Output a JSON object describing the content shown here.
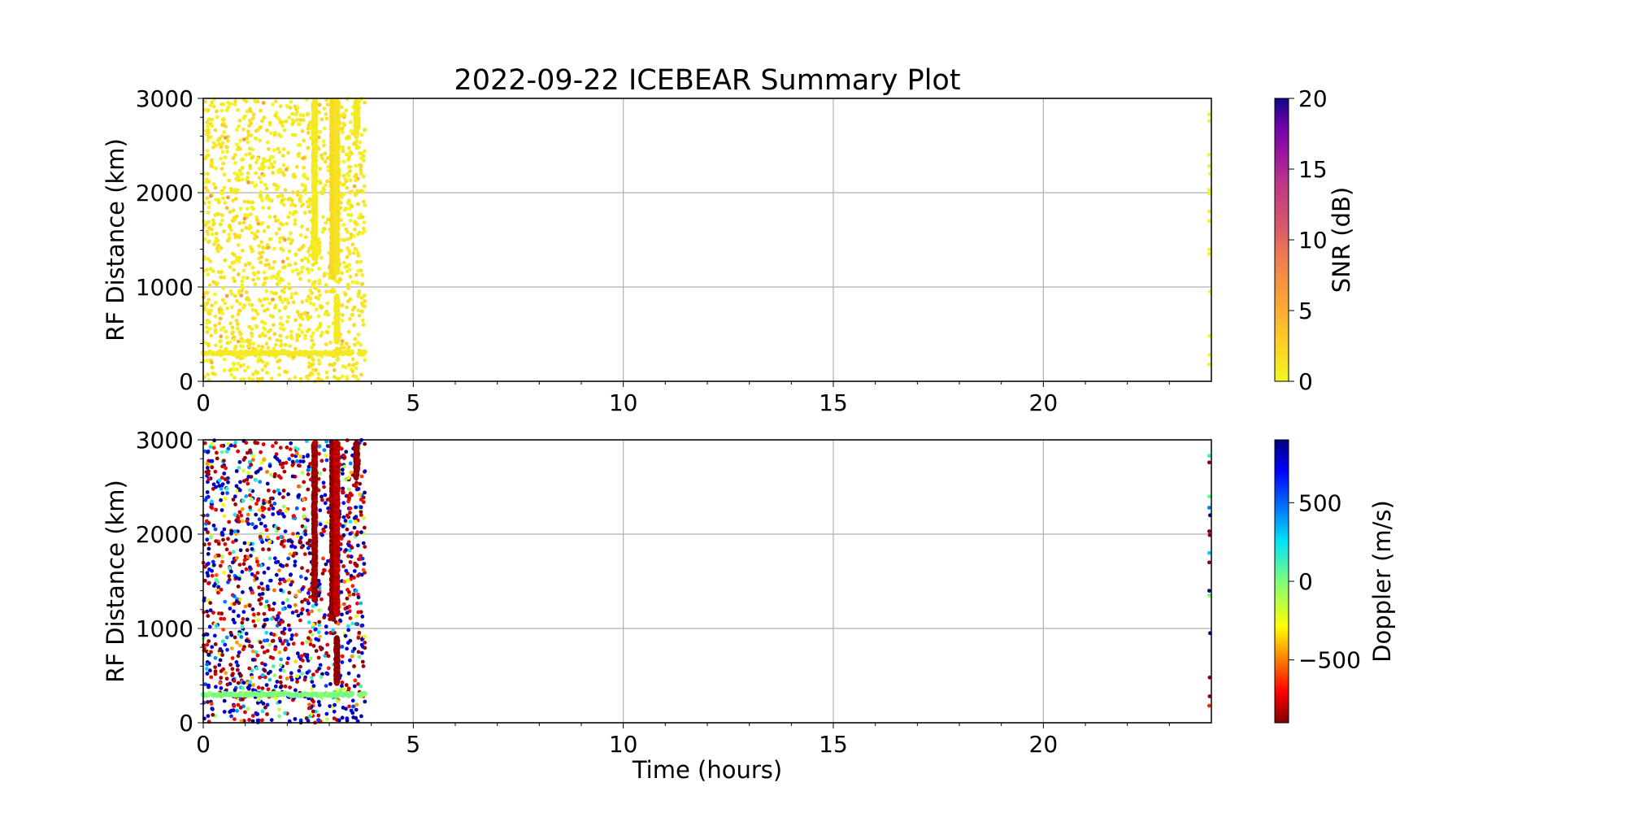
{
  "chart_data": [
    {
      "type": "scatter",
      "title": "2022-09-22 ICEBEAR Summary Plot",
      "xlabel": "",
      "ylabel": "RF Distance (km)",
      "xlim": [
        0,
        24
      ],
      "ylim": [
        0,
        3000
      ],
      "xticks": [
        "0",
        "5",
        "10",
        "15",
        "20"
      ],
      "yticks": [
        "0",
        "1000",
        "2000",
        "3000"
      ],
      "grid": true,
      "color_variable": "snr",
      "colorbar": {
        "label": "SNR (dB)",
        "colormap": "plasma_r",
        "range": [
          0,
          20
        ],
        "ticks": [
          "0",
          "5",
          "10",
          "15",
          "20"
        ]
      }
    },
    {
      "type": "scatter",
      "title": "",
      "xlabel": "Time (hours)",
      "ylabel": "RF Distance (km)",
      "xlim": [
        0,
        24
      ],
      "ylim": [
        0,
        3000
      ],
      "xticks": [
        "0",
        "5",
        "10",
        "15",
        "20"
      ],
      "yticks": [
        "0",
        "1000",
        "2000",
        "3000"
      ],
      "grid": true,
      "color_variable": "doppler",
      "colorbar": {
        "label": "Doppler (m/s)",
        "colormap": "jet_r",
        "range": [
          -900,
          900
        ],
        "ticks": [
          "−500",
          "0",
          "500"
        ]
      }
    }
  ],
  "observations": {
    "scattered_echoes": {
      "time_range_hours": [
        0,
        3.85
      ],
      "range_km": [
        0,
        3000
      ],
      "count_approx": 1400,
      "snr_db_typical": [
        0,
        2
      ],
      "doppler_ms": [
        -900,
        900
      ]
    },
    "streaks": [
      {
        "time": 2.65,
        "range_km": [
          1300,
          2970
        ],
        "snr": 1,
        "doppler": -850
      },
      {
        "time": 3.08,
        "range_km": [
          1100,
          2970
        ],
        "snr": 2,
        "doppler": -880
      },
      {
        "time": 3.18,
        "range_km": [
          1150,
          2970
        ],
        "snr": 1.5,
        "doppler": -800
      },
      {
        "time": 3.18,
        "range_km": [
          420,
          900
        ],
        "snr": 1,
        "doppler": -870
      },
      {
        "time": 3.65,
        "range_km": [
          2600,
          2970
        ],
        "snr": 1,
        "doppler": -870
      }
    ],
    "band": {
      "range_km": 300,
      "time_range_hours": [
        0,
        3.85
      ],
      "snr": 1,
      "doppler": 0
    },
    "late_points": [
      {
        "time": 23.95,
        "range": 2830,
        "snr": 0.5,
        "doppler": 150
      },
      {
        "time": 23.95,
        "range": 2760,
        "snr": 0.5,
        "doppler": -880
      },
      {
        "time": 23.95,
        "range": 2400,
        "snr": 0.5,
        "doppler": 50
      },
      {
        "time": 23.95,
        "range": 2280,
        "snr": 0.5,
        "doppler": 450
      },
      {
        "time": 23.97,
        "range": 2200,
        "snr": 0.5,
        "doppler": 880
      },
      {
        "time": 23.95,
        "range": 2030,
        "snr": 0.5,
        "doppler": -880
      },
      {
        "time": 23.96,
        "range": 1990,
        "snr": 0.5,
        "doppler": -880
      },
      {
        "time": 23.95,
        "range": 1800,
        "snr": 0.5,
        "doppler": 300
      },
      {
        "time": 23.95,
        "range": 1700,
        "snr": 0.5,
        "doppler": -880
      },
      {
        "time": 23.95,
        "range": 1400,
        "snr": 0.5,
        "doppler": 880
      },
      {
        "time": 23.95,
        "range": 1350,
        "snr": 0.5,
        "doppler": 0
      },
      {
        "time": 23.97,
        "range": 950,
        "snr": 0.5,
        "doppler": 880
      },
      {
        "time": 23.96,
        "range": 480,
        "snr": 0.5,
        "doppler": -880
      },
      {
        "time": 23.96,
        "range": 280,
        "snr": 0.5,
        "doppler": -880
      },
      {
        "time": 23.95,
        "range": 180,
        "snr": 0.5,
        "doppler": -650
      }
    ]
  }
}
